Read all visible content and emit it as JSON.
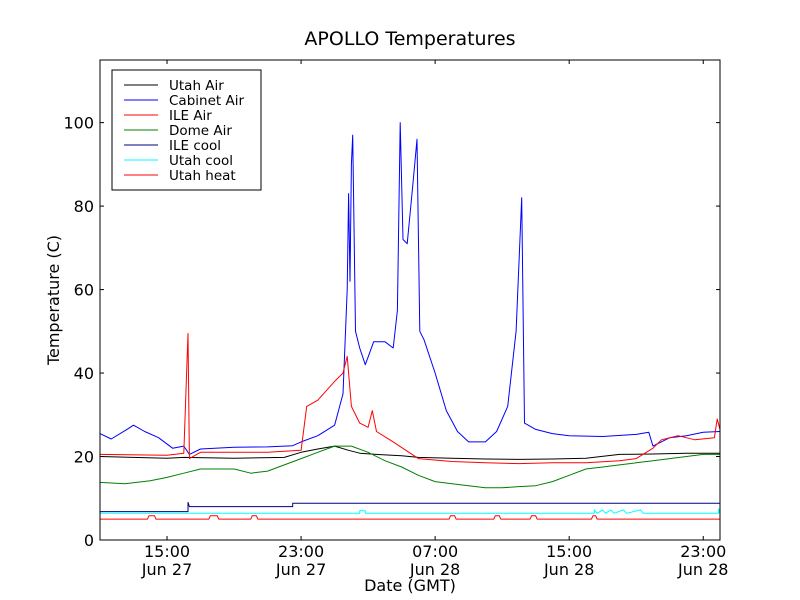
{
  "chart_data": {
    "type": "line",
    "title": "APOLLO Temperatures",
    "xlabel": "Date (GMT)",
    "ylabel": "Temperature (C)",
    "ylim": [
      0,
      115
    ],
    "xlim": [
      "2011-06-27T11:00",
      "2011-06-29T00:00"
    ],
    "x_ticks": [
      {
        "x": "2011-06-27T15:00",
        "line1": "15:00",
        "line2": "Jun 27"
      },
      {
        "x": "2011-06-27T23:00",
        "line1": "23:00",
        "line2": "Jun 27"
      },
      {
        "x": "2011-06-28T07:00",
        "line1": "07:00",
        "line2": "Jun 28"
      },
      {
        "x": "2011-06-28T15:00",
        "line1": "15:00",
        "line2": "Jun 28"
      },
      {
        "x": "2011-06-28T23:00",
        "line1": "23:00",
        "line2": "Jun 28"
      }
    ],
    "y_ticks": [
      0,
      20,
      40,
      60,
      80,
      100
    ],
    "grid": false,
    "legend_position": "top-left",
    "series": [
      {
        "name": "Utah Air",
        "color": "#000000",
        "points": [
          [
            "2011-06-27T11:00",
            20.0
          ],
          [
            "2011-06-27T13:00",
            19.8
          ],
          [
            "2011-06-27T15:00",
            19.6
          ],
          [
            "2011-06-27T16:00",
            19.8
          ],
          [
            "2011-06-27T19:00",
            19.6
          ],
          [
            "2011-06-27T22:00",
            19.8
          ],
          [
            "2011-06-27T23:00",
            21.0
          ],
          [
            "2011-06-28T00:00",
            21.8
          ],
          [
            "2011-06-28T01:00",
            22.5
          ],
          [
            "2011-06-28T01:50",
            21.5
          ],
          [
            "2011-06-28T02:30",
            20.8
          ],
          [
            "2011-06-28T04:00",
            20.4
          ],
          [
            "2011-06-28T05:00",
            20.2
          ],
          [
            "2011-06-28T06:00",
            19.8
          ],
          [
            "2011-06-28T08:00",
            19.6
          ],
          [
            "2011-06-28T10:00",
            19.4
          ],
          [
            "2011-06-28T12:00",
            19.3
          ],
          [
            "2011-06-28T14:00",
            19.4
          ],
          [
            "2011-06-28T16:00",
            19.6
          ],
          [
            "2011-06-28T18:00",
            20.5
          ],
          [
            "2011-06-28T20:00",
            20.6
          ],
          [
            "2011-06-28T22:00",
            20.8
          ],
          [
            "2011-06-29T00:00",
            20.8
          ]
        ]
      },
      {
        "name": "Cabinet Air",
        "color": "#0000ff",
        "points": [
          [
            "2011-06-27T11:00",
            25.5
          ],
          [
            "2011-06-27T11:40",
            24.2
          ],
          [
            "2011-06-27T12:30",
            26.2
          ],
          [
            "2011-06-27T13:00",
            27.5
          ],
          [
            "2011-06-27T13:40",
            26.0
          ],
          [
            "2011-06-27T14:30",
            24.5
          ],
          [
            "2011-06-27T15:20",
            22.0
          ],
          [
            "2011-06-27T16:00",
            22.5
          ],
          [
            "2011-06-27T16:20",
            20.5
          ],
          [
            "2011-06-27T17:00",
            21.8
          ],
          [
            "2011-06-27T19:00",
            22.2
          ],
          [
            "2011-06-27T21:00",
            22.3
          ],
          [
            "2011-06-27T22:30",
            22.6
          ],
          [
            "2011-06-27T23:00",
            23.5
          ],
          [
            "2011-06-28T00:00",
            25.0
          ],
          [
            "2011-06-28T01:00",
            27.5
          ],
          [
            "2011-06-28T01:30",
            35.0
          ],
          [
            "2011-06-28T01:45",
            60.0
          ],
          [
            "2011-06-28T01:50",
            83.0
          ],
          [
            "2011-06-28T01:55",
            62.0
          ],
          [
            "2011-06-28T02:00",
            90.0
          ],
          [
            "2011-06-28T02:05",
            97.0
          ],
          [
            "2011-06-28T02:15",
            50.0
          ],
          [
            "2011-06-28T02:30",
            46.0
          ],
          [
            "2011-06-28T02:50",
            42.0
          ],
          [
            "2011-06-28T03:20",
            47.5
          ],
          [
            "2011-06-28T04:00",
            47.5
          ],
          [
            "2011-06-28T04:30",
            46.0
          ],
          [
            "2011-06-28T04:45",
            55.0
          ],
          [
            "2011-06-28T04:55",
            100.0
          ],
          [
            "2011-06-28T05:05",
            72.0
          ],
          [
            "2011-06-28T05:20",
            71.0
          ],
          [
            "2011-06-28T05:40",
            85.0
          ],
          [
            "2011-06-28T05:55",
            96.0
          ],
          [
            "2011-06-28T06:05",
            50.0
          ],
          [
            "2011-06-28T06:20",
            48.0
          ],
          [
            "2011-06-28T07:00",
            40.0
          ],
          [
            "2011-06-28T07:40",
            31.0
          ],
          [
            "2011-06-28T08:20",
            26.0
          ],
          [
            "2011-06-28T09:00",
            23.5
          ],
          [
            "2011-06-28T10:00",
            23.5
          ],
          [
            "2011-06-28T10:40",
            26.0
          ],
          [
            "2011-06-28T11:20",
            32.0
          ],
          [
            "2011-06-28T11:50",
            50.0
          ],
          [
            "2011-06-28T12:10",
            82.0
          ],
          [
            "2011-06-28T12:20",
            28.0
          ],
          [
            "2011-06-28T13:00",
            26.5
          ],
          [
            "2011-06-28T14:00",
            25.5
          ],
          [
            "2011-06-28T15:00",
            25.0
          ],
          [
            "2011-06-28T17:00",
            24.8
          ],
          [
            "2011-06-28T19:00",
            25.3
          ],
          [
            "2011-06-28T19:45",
            25.8
          ],
          [
            "2011-06-28T20:00",
            22.5
          ],
          [
            "2011-06-28T21:00",
            24.5
          ],
          [
            "2011-06-28T22:00",
            25.0
          ],
          [
            "2011-06-28T23:00",
            25.8
          ],
          [
            "2011-06-29T00:00",
            26.0
          ]
        ]
      },
      {
        "name": "ILE Air",
        "color": "#ff0000",
        "points": [
          [
            "2011-06-27T11:00",
            20.5
          ],
          [
            "2011-06-27T15:00",
            20.3
          ],
          [
            "2011-06-27T16:00",
            20.8
          ],
          [
            "2011-06-27T16:15",
            49.5
          ],
          [
            "2011-06-27T16:20",
            19.5
          ],
          [
            "2011-06-27T17:00",
            21.0
          ],
          [
            "2011-06-27T19:00",
            21.0
          ],
          [
            "2011-06-27T21:00",
            21.0
          ],
          [
            "2011-06-27T23:00",
            21.5
          ],
          [
            "2011-06-27T23:20",
            32.0
          ],
          [
            "2011-06-28T00:00",
            33.5
          ],
          [
            "2011-06-28T01:00",
            38.0
          ],
          [
            "2011-06-28T01:30",
            40.0
          ],
          [
            "2011-06-28T01:45",
            44.0
          ],
          [
            "2011-06-28T02:00",
            32.0
          ],
          [
            "2011-06-28T02:30",
            28.0
          ],
          [
            "2011-06-28T03:00",
            27.0
          ],
          [
            "2011-06-28T03:15",
            31.0
          ],
          [
            "2011-06-28T03:30",
            26.0
          ],
          [
            "2011-06-28T04:30",
            23.5
          ],
          [
            "2011-06-28T06:00",
            19.5
          ],
          [
            "2011-06-28T08:00",
            18.8
          ],
          [
            "2011-06-28T10:00",
            18.5
          ],
          [
            "2011-06-28T12:00",
            18.3
          ],
          [
            "2011-06-28T14:00",
            18.5
          ],
          [
            "2011-06-28T16:00",
            18.5
          ],
          [
            "2011-06-28T18:00",
            19.0
          ],
          [
            "2011-06-28T19:00",
            19.5
          ],
          [
            "2011-06-28T20:00",
            22.0
          ],
          [
            "2011-06-28T20:30",
            24.0
          ],
          [
            "2011-06-28T21:30",
            25.0
          ],
          [
            "2011-06-28T22:30",
            24.0
          ],
          [
            "2011-06-28T23:40",
            24.5
          ],
          [
            "2011-06-28T23:50",
            29.0
          ],
          [
            "2011-06-29T00:00",
            26.5
          ]
        ]
      },
      {
        "name": "Dome Air",
        "color": "#008000",
        "points": [
          [
            "2011-06-27T11:00",
            13.8
          ],
          [
            "2011-06-27T12:30",
            13.5
          ],
          [
            "2011-06-27T14:00",
            14.2
          ],
          [
            "2011-06-27T15:00",
            15.0
          ],
          [
            "2011-06-27T16:00",
            16.0
          ],
          [
            "2011-06-27T17:00",
            17.0
          ],
          [
            "2011-06-27T19:00",
            17.0
          ],
          [
            "2011-06-27T20:00",
            16.0
          ],
          [
            "2011-06-27T21:00",
            16.5
          ],
          [
            "2011-06-27T22:00",
            18.0
          ],
          [
            "2011-06-27T23:00",
            19.5
          ],
          [
            "2011-06-28T00:00",
            21.0
          ],
          [
            "2011-06-28T01:00",
            22.5
          ],
          [
            "2011-06-28T02:00",
            22.5
          ],
          [
            "2011-06-28T03:00",
            21.0
          ],
          [
            "2011-06-28T04:00",
            19.0
          ],
          [
            "2011-06-28T05:00",
            17.5
          ],
          [
            "2011-06-28T06:00",
            15.5
          ],
          [
            "2011-06-28T07:00",
            14.0
          ],
          [
            "2011-06-28T08:00",
            13.5
          ],
          [
            "2011-06-28T09:00",
            13.0
          ],
          [
            "2011-06-28T10:00",
            12.5
          ],
          [
            "2011-06-28T11:00",
            12.5
          ],
          [
            "2011-06-28T12:00",
            12.8
          ],
          [
            "2011-06-28T13:00",
            13.0
          ],
          [
            "2011-06-28T14:00",
            14.0
          ],
          [
            "2011-06-28T15:00",
            15.5
          ],
          [
            "2011-06-28T16:00",
            17.0
          ],
          [
            "2011-06-28T17:00",
            17.5
          ],
          [
            "2011-06-28T18:00",
            18.0
          ],
          [
            "2011-06-28T19:00",
            18.5
          ],
          [
            "2011-06-28T20:00",
            19.0
          ],
          [
            "2011-06-28T21:00",
            19.5
          ],
          [
            "2011-06-28T22:00",
            20.0
          ],
          [
            "2011-06-28T23:00",
            20.5
          ],
          [
            "2011-06-29T00:00",
            20.5
          ]
        ]
      },
      {
        "name": "ILE cool",
        "color": "#000080",
        "points": [
          [
            "2011-06-27T11:00",
            6.8
          ],
          [
            "2011-06-27T16:15",
            6.8
          ],
          [
            "2011-06-27T16:15",
            9.0
          ],
          [
            "2011-06-27T16:20",
            8.0
          ],
          [
            "2011-06-27T22:30",
            8.0
          ],
          [
            "2011-06-27T22:30",
            8.8
          ],
          [
            "2011-06-29T00:00",
            8.8
          ]
        ]
      },
      {
        "name": "Utah cool",
        "color": "#00ffff",
        "points": [
          [
            "2011-06-27T11:00",
            6.4
          ],
          [
            "2011-06-28T02:30",
            6.4
          ],
          [
            "2011-06-28T02:30",
            7.0
          ],
          [
            "2011-06-28T02:50",
            7.0
          ],
          [
            "2011-06-28T02:50",
            6.4
          ],
          [
            "2011-06-28T16:30",
            6.4
          ],
          [
            "2011-06-28T16:30",
            7.2
          ],
          [
            "2011-06-28T16:40",
            6.4
          ],
          [
            "2011-06-28T17:00",
            7.2
          ],
          [
            "2011-06-28T17:10",
            6.4
          ],
          [
            "2011-06-28T17:30",
            7.2
          ],
          [
            "2011-06-28T17:40",
            6.4
          ],
          [
            "2011-06-28T18:15",
            7.2
          ],
          [
            "2011-06-28T18:25",
            6.4
          ],
          [
            "2011-06-28T19:15",
            7.2
          ],
          [
            "2011-06-28T19:25",
            6.4
          ],
          [
            "2011-06-28T23:55",
            6.4
          ],
          [
            "2011-06-28T23:55",
            7.5
          ],
          [
            "2011-06-29T00:00",
            6.4
          ]
        ]
      },
      {
        "name": "Utah heat",
        "color": "#ff0000",
        "points": [
          [
            "2011-06-27T11:00",
            5.0
          ],
          [
            "2011-06-27T13:50",
            5.0
          ],
          [
            "2011-06-27T13:55",
            5.8
          ],
          [
            "2011-06-27T14:15",
            5.8
          ],
          [
            "2011-06-27T14:20",
            5.0
          ],
          [
            "2011-06-27T17:30",
            5.0
          ],
          [
            "2011-06-27T17:35",
            5.8
          ],
          [
            "2011-06-27T18:00",
            5.8
          ],
          [
            "2011-06-27T18:05",
            5.0
          ],
          [
            "2011-06-27T20:00",
            5.0
          ],
          [
            "2011-06-27T20:05",
            5.8
          ],
          [
            "2011-06-27T20:20",
            5.8
          ],
          [
            "2011-06-27T20:25",
            5.0
          ],
          [
            "2011-06-28T07:50",
            5.0
          ],
          [
            "2011-06-28T07:55",
            5.8
          ],
          [
            "2011-06-28T08:10",
            5.8
          ],
          [
            "2011-06-28T08:15",
            5.0
          ],
          [
            "2011-06-28T10:30",
            5.0
          ],
          [
            "2011-06-28T10:35",
            5.8
          ],
          [
            "2011-06-28T10:50",
            5.8
          ],
          [
            "2011-06-28T10:55",
            5.0
          ],
          [
            "2011-06-28T12:40",
            5.0
          ],
          [
            "2011-06-28T12:45",
            5.8
          ],
          [
            "2011-06-28T13:00",
            5.8
          ],
          [
            "2011-06-28T13:05",
            5.0
          ],
          [
            "2011-06-28T16:20",
            5.0
          ],
          [
            "2011-06-28T16:25",
            5.8
          ],
          [
            "2011-06-28T16:35",
            5.8
          ],
          [
            "2011-06-28T16:40",
            5.0
          ],
          [
            "2011-06-29T00:00",
            5.0
          ]
        ]
      }
    ]
  }
}
